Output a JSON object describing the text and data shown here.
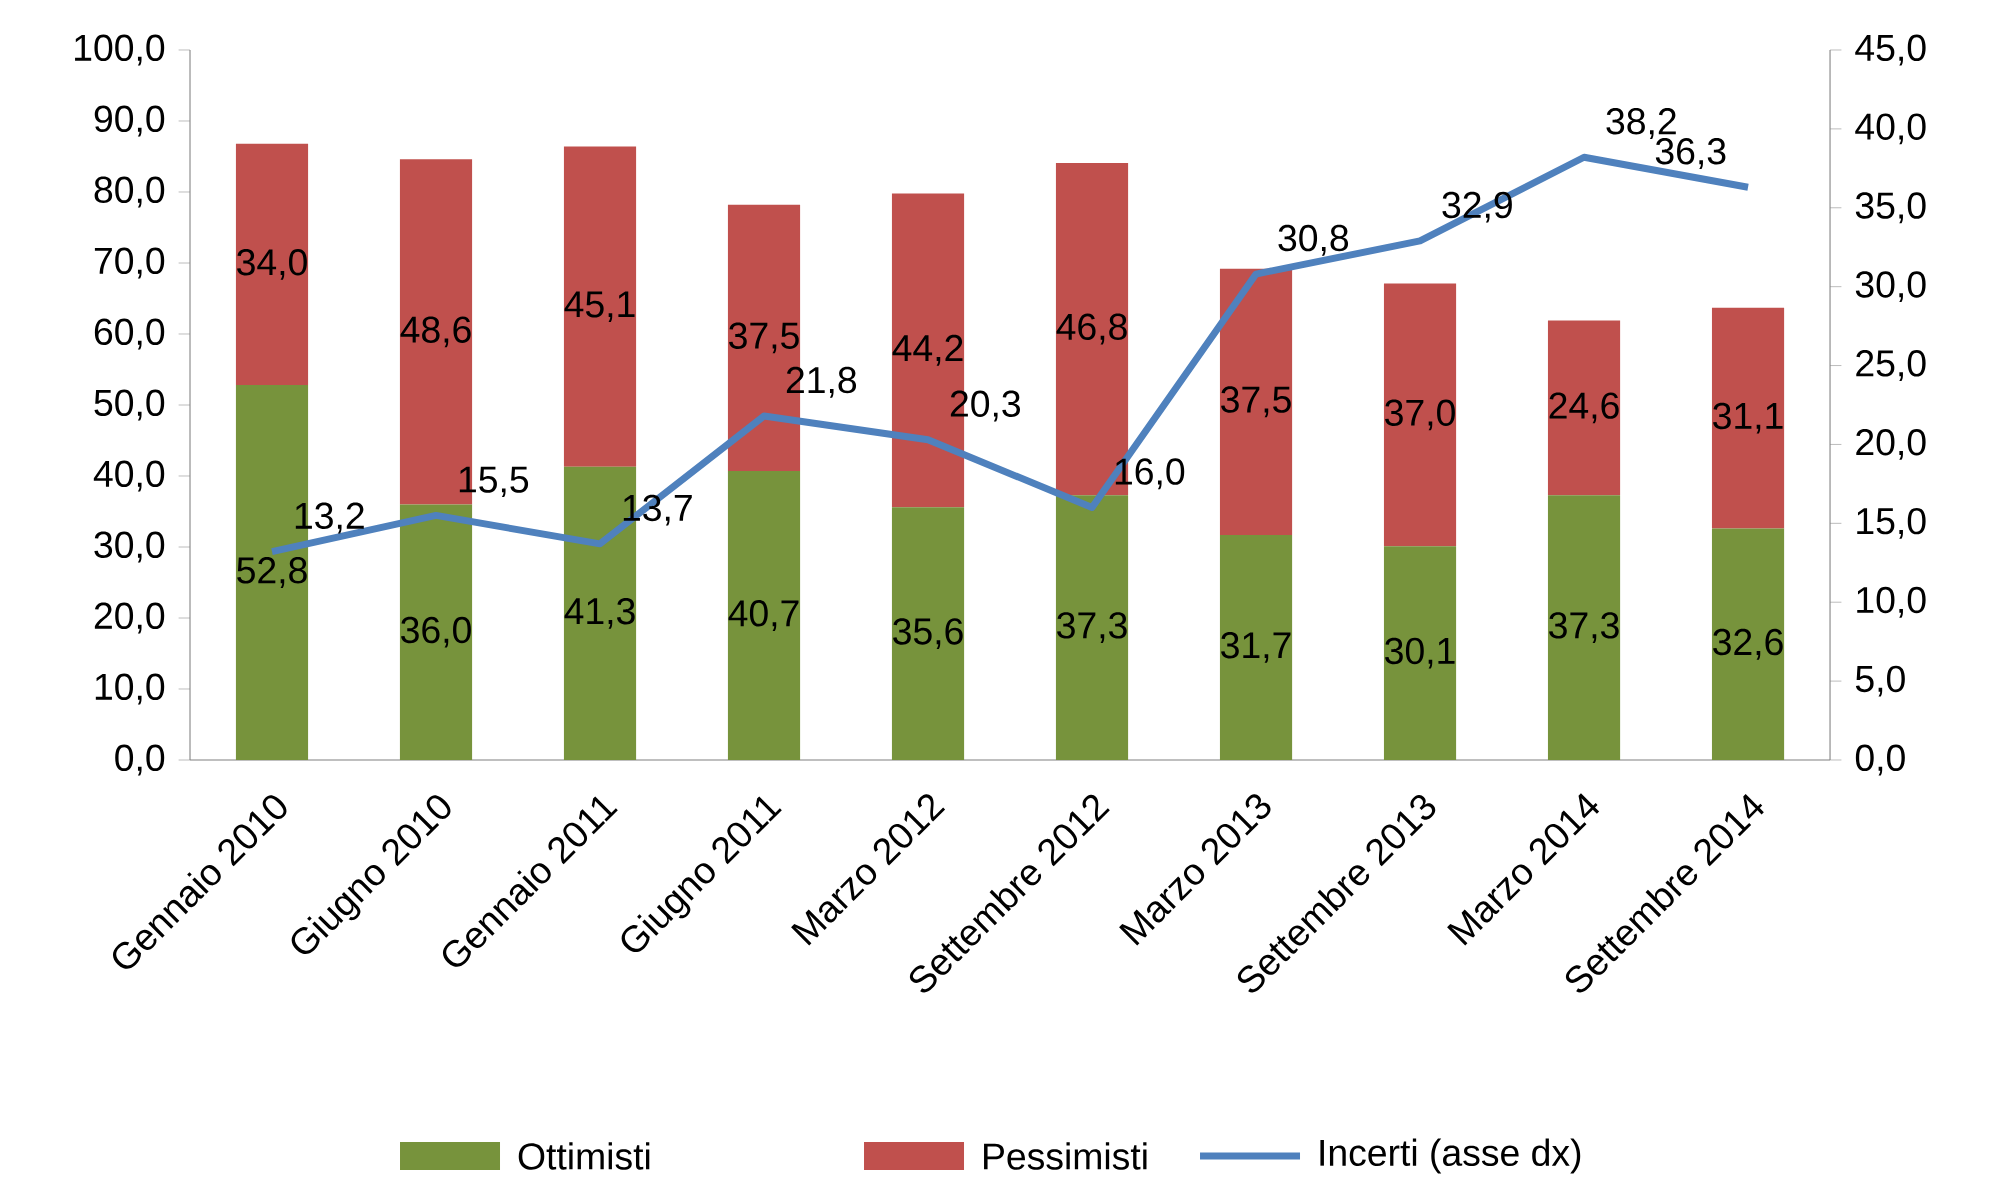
{
  "chart_data": {
    "type": "bar",
    "stacked": true,
    "legend": "bottom",
    "categories": [
      "Gennaio 2010",
      "Giugno 2010",
      "Gennaio 2011",
      "Giugno 2011",
      "Marzo 2012",
      "Settembre 2012",
      "Marzo 2013",
      "Settembre 2013",
      "Marzo 2014",
      "Settembre 2014"
    ],
    "series": [
      {
        "name": "Ottimisti",
        "type": "bar",
        "color": "#77933c",
        "values": [
          52.8,
          36.0,
          41.3,
          40.7,
          35.6,
          37.3,
          31.7,
          30.1,
          37.3,
          32.6
        ],
        "value_labels": [
          "52,8",
          "36,0",
          "41,3",
          "40,7",
          "35,6",
          "37,3",
          "31,7",
          "30,1",
          "37,3",
          "32,6"
        ]
      },
      {
        "name": "Pessimisti",
        "type": "bar",
        "color": "#c0504d",
        "values": [
          34.0,
          48.6,
          45.1,
          37.5,
          44.2,
          46.8,
          37.5,
          37.0,
          24.6,
          31.1
        ],
        "value_labels": [
          "34,0",
          "48,6",
          "45,1",
          "37,5",
          "44,2",
          "46,8",
          "37,5",
          "37,0",
          "24,6",
          "31,1"
        ]
      },
      {
        "name": "Incerti (asse dx)",
        "type": "line",
        "axis": "y2",
        "color": "#4f81bd",
        "values": [
          13.2,
          15.5,
          13.7,
          21.8,
          20.3,
          16.0,
          30.8,
          32.9,
          38.2,
          36.3
        ],
        "value_labels": [
          "13,2",
          "15,5",
          "13,7",
          "21,8",
          "20,3",
          "16,0",
          "30,8",
          "32,9",
          "38,2",
          "36,3"
        ]
      }
    ],
    "ylim": [
      0,
      100
    ],
    "yticks": [
      {
        "value": 0,
        "label": "0,0"
      },
      {
        "value": 10,
        "label": "10,0"
      },
      {
        "value": 20,
        "label": "20,0"
      },
      {
        "value": 30,
        "label": "30,0"
      },
      {
        "value": 40,
        "label": "40,0"
      },
      {
        "value": 50,
        "label": "50,0"
      },
      {
        "value": 60,
        "label": "60,0"
      },
      {
        "value": 70,
        "label": "70,0"
      },
      {
        "value": 80,
        "label": "80,0"
      },
      {
        "value": 90,
        "label": "90,0"
      },
      {
        "value": 100,
        "label": "100,0"
      }
    ],
    "y2lim": [
      0,
      45
    ],
    "y2ticks": [
      {
        "value": 0,
        "label": "0,0"
      },
      {
        "value": 5,
        "label": "5,0"
      },
      {
        "value": 10,
        "label": "10,0"
      },
      {
        "value": 15,
        "label": "15,0"
      },
      {
        "value": 20,
        "label": "20,0"
      },
      {
        "value": 25,
        "label": "25,0"
      },
      {
        "value": 30,
        "label": "30,0"
      },
      {
        "value": 35,
        "label": "35,0"
      },
      {
        "value": 40,
        "label": "40,0"
      },
      {
        "value": 45,
        "label": "45,0"
      }
    ]
  }
}
